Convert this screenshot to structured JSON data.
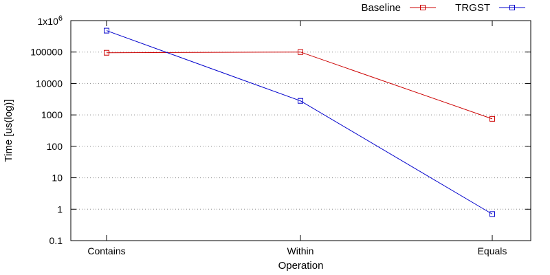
{
  "chart_data": {
    "type": "line",
    "title": "",
    "xlabel": "Operation",
    "ylabel": "Time [us(log)]",
    "yscale": "log",
    "ylim": [
      0.1,
      1000000
    ],
    "grid": "horizontal-dotted",
    "legend_position": "top-right",
    "categories": [
      "Contains",
      "Within",
      "Equals"
    ],
    "y_ticks": [
      {
        "value": 0.1,
        "label": "0.1"
      },
      {
        "value": 1,
        "label": "1"
      },
      {
        "value": 10,
        "label": "10"
      },
      {
        "value": 100,
        "label": "100"
      },
      {
        "value": 1000,
        "label": "1000"
      },
      {
        "value": 10000,
        "label": "10000"
      },
      {
        "value": 100000,
        "label": "100000"
      },
      {
        "value": 1000000,
        "label": "1x10",
        "label_exp": "6"
      }
    ],
    "series": [
      {
        "name": "Baseline",
        "color": "#cc0000",
        "marker": "square-open",
        "values": [
          95000,
          100000,
          750
        ]
      },
      {
        "name": "TRGST",
        "color": "#0000cc",
        "marker": "square-open",
        "values": [
          480000,
          2800,
          0.7
        ]
      }
    ]
  }
}
